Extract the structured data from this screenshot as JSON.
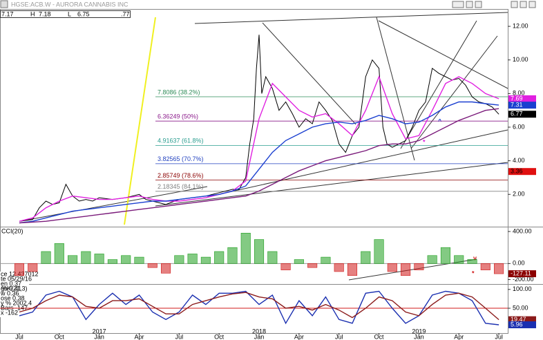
{
  "header": {
    "symbol": "HGSE:ACB.W - AURORA CANNABIS INC",
    "fields": [
      "7.17",
      "H",
      "7.18",
      "L",
      "6.75",
      ".77"
    ]
  },
  "data_window": [
    "ce 12.437012",
    "te 05/29/16",
    "en 0.37",
    "gh 0.41",
    "w 0.36",
    "ose 0.38",
    "y % 2002.4",
    "Bars -147",
    "x -162"
  ],
  "annotations": [
    "^",
    "*",
    "v",
    "*"
  ],
  "chart_data": [
    {
      "type": "line",
      "ylim": [
        0.16,
        12.95
      ],
      "yticks": [
        {
          "value": 2,
          "label": "2.00"
        },
        {
          "value": 4,
          "label": "4.00"
        },
        {
          "value": 6,
          "label": "6.00"
        },
        {
          "value": 8,
          "label": "8.00"
        },
        {
          "value": 10,
          "label": "10.00"
        },
        {
          "value": 12,
          "label": "12.00"
        }
      ],
      "x": [
        0,
        1,
        2,
        3,
        4,
        5,
        6,
        7,
        8,
        9,
        10,
        11,
        12,
        13,
        14,
        15,
        16,
        17,
        18,
        19,
        20,
        21,
        22,
        23,
        24,
        25,
        26,
        27,
        28,
        29,
        30,
        31,
        32,
        33,
        34,
        35,
        36
      ],
      "series": [
        {
          "color": "#000000",
          "x": [
            0,
            1,
            1.5,
            2,
            2.5,
            3,
            3.5,
            4,
            4.5,
            5,
            5.5,
            6,
            7,
            8,
            9,
            9.5,
            10,
            11,
            12,
            13,
            14,
            15,
            16,
            16.5,
            17,
            17.3,
            17.6,
            17.8,
            18,
            18.2,
            18.5,
            19,
            19.5,
            20,
            20.5,
            21,
            21.5,
            22,
            22.5,
            23,
            23.5,
            24,
            24.5,
            25,
            25.5,
            26,
            26.5,
            27,
            27.3,
            27.6,
            28,
            28.5,
            29,
            29.5,
            30,
            30.5,
            31,
            31.5,
            32,
            32.5,
            33,
            33.5,
            34,
            34.5,
            35,
            35.5,
            36
          ],
          "values": [
            0.4,
            0.5,
            1.2,
            1.6,
            1.4,
            1.5,
            2.6,
            1.9,
            1.6,
            1.7,
            1.6,
            1.8,
            1.7,
            1.8,
            2.0,
            1.7,
            1.6,
            1.4,
            1.7,
            1.8,
            1.9,
            2.1,
            2.3,
            2.3,
            3.0,
            5.0,
            6.5,
            9.5,
            11.5,
            8.0,
            9.0,
            8.3,
            7.0,
            7.5,
            6.8,
            6.0,
            6.5,
            6.2,
            7.5,
            7.0,
            6.4,
            5.0,
            4.5,
            5.5,
            6.0,
            9.0,
            10.0,
            9.5,
            6.0,
            5.0,
            4.8,
            5.0,
            5.2,
            6.0,
            7.0,
            7.5,
            9.5,
            9.2,
            9.0,
            8.8,
            8.9,
            8.5,
            7.8,
            7.5,
            7.4,
            7.2,
            6.77
          ]
        },
        {
          "color": "#e020e0",
          "values": [
            0.4,
            0.6,
            1.2,
            1.6,
            1.9,
            1.8,
            1.7,
            1.7,
            1.8,
            1.9,
            1.7,
            1.6,
            1.6,
            1.7,
            1.8,
            2.0,
            2.2,
            2.8,
            6.5,
            8.6,
            7.8,
            7.0,
            6.6,
            6.8,
            6.2,
            5.5,
            7.0,
            9.0,
            6.8,
            5.3,
            5.5,
            7.0,
            8.6,
            9.0,
            8.6,
            8.0,
            7.69
          ]
        },
        {
          "color": "#1a3fd0",
          "values": [
            0.3,
            0.4,
            0.6,
            0.8,
            1.0,
            1.1,
            1.2,
            1.3,
            1.4,
            1.5,
            1.6,
            1.6,
            1.7,
            1.8,
            1.9,
            2.0,
            2.2,
            2.5,
            3.5,
            4.5,
            5.2,
            5.6,
            6.0,
            6.2,
            6.3,
            6.2,
            6.4,
            6.7,
            6.5,
            6.2,
            6.3,
            6.7,
            7.2,
            7.5,
            7.5,
            7.4,
            7.31
          ]
        },
        {
          "color": "#7a1a7a",
          "values": [
            0.3,
            0.35,
            0.4,
            0.5,
            0.6,
            0.7,
            0.8,
            0.9,
            1.0,
            1.1,
            1.2,
            1.3,
            1.4,
            1.5,
            1.6,
            1.7,
            1.8,
            1.9,
            2.2,
            2.6,
            3.0,
            3.4,
            3.7,
            4.0,
            4.2,
            4.4,
            4.6,
            4.9,
            5.0,
            5.0,
            5.2,
            5.6,
            6.0,
            6.4,
            6.7,
            7.0,
            7.1
          ]
        }
      ],
      "levels": [
        {
          "value": 7.8086,
          "label": "7.8086 (38.2%)",
          "color": "#2e8b57"
        },
        {
          "value": 6.36249,
          "label": "6.36249 (50%)",
          "color": "#8b1a8b"
        },
        {
          "value": 4.91637,
          "label": "4.91637 (61.8%)",
          "color": "#2a9d8f"
        },
        {
          "value": 3.82565,
          "label": "3.82565 (70.7%)",
          "color": "#1f3fbf"
        },
        {
          "value": 2.85749,
          "label": "2.85749 (78.6%)",
          "color": "#8b0000"
        },
        {
          "value": 2.18345,
          "label": "2.18345 (84.1%)",
          "color": "#808080"
        }
      ],
      "tags": [
        {
          "value": 7.69,
          "label": "7.69",
          "color": "#e020e0"
        },
        {
          "value": 7.31,
          "label": "7.31",
          "color": "#1a3fd0"
        },
        {
          "value": 6.77,
          "label": "6.77",
          "color": "#000000"
        },
        {
          "value": 3.36,
          "label": "3.36",
          "color": "#e01010"
        }
      ]
    },
    {
      "type": "bar",
      "title": "CCI(20)",
      "ylim": [
        -247,
        443
      ],
      "yticks": [
        {
          "value": 400,
          "label": "400.00"
        },
        {
          "value": 0,
          "label": "0.00"
        },
        {
          "value": -200,
          "label": "-200.00"
        }
      ],
      "pos_color": "#1e9e1e",
      "neg_color": "#d01818",
      "x": [
        0,
        1,
        2,
        3,
        4,
        5,
        6,
        7,
        8,
        9,
        10,
        11,
        12,
        13,
        14,
        15,
        16,
        17,
        18,
        19,
        20,
        21,
        22,
        23,
        24,
        25,
        26,
        27,
        28,
        29,
        30,
        31,
        32,
        33,
        34,
        35,
        36
      ],
      "values": [
        -150,
        -100,
        150,
        250,
        100,
        150,
        120,
        50,
        100,
        80,
        -50,
        -120,
        100,
        120,
        80,
        150,
        200,
        380,
        300,
        150,
        -80,
        50,
        -50,
        80,
        -100,
        -150,
        150,
        300,
        -100,
        -150,
        -80,
        100,
        200,
        100,
        50,
        -80,
        -127.11
      ],
      "tags": [
        {
          "value": -127.11,
          "label": "-127.11",
          "color": "#8b0000"
        }
      ]
    },
    {
      "type": "line",
      "title": "%K(21,3)",
      "ylim": [
        -14.3,
        110.7
      ],
      "yticks": [
        {
          "value": 100,
          "label": "100.00"
        },
        {
          "value": 50,
          "label": "50.00"
        }
      ],
      "ref_level": 50,
      "xlim": [
        -1.45,
        36.67
      ],
      "xticks": [
        {
          "value": 0,
          "label": "Jul"
        },
        {
          "value": 3,
          "label": "Oct"
        },
        {
          "value": 6,
          "label": "Jan"
        },
        {
          "value": 9,
          "label": "Apr"
        },
        {
          "value": 12,
          "label": "Jul"
        },
        {
          "value": 15,
          "label": "Oct"
        },
        {
          "value": 18,
          "label": "Jan"
        },
        {
          "value": 21,
          "label": "Apr"
        },
        {
          "value": 24,
          "label": "Jul"
        },
        {
          "value": 27,
          "label": "Oct"
        },
        {
          "value": 30,
          "label": "Jan"
        },
        {
          "value": 33,
          "label": "Apr"
        },
        {
          "value": 36,
          "label": "Jul"
        }
      ],
      "year_labels": [
        {
          "value": 6,
          "label": "2017"
        },
        {
          "value": 18,
          "label": "2018"
        },
        {
          "value": 30,
          "label": "2019"
        }
      ],
      "x": [
        0,
        1,
        2,
        3,
        4,
        5,
        6,
        7,
        8,
        9,
        10,
        11,
        12,
        13,
        14,
        15,
        16,
        17,
        18,
        19,
        20,
        21,
        22,
        23,
        24,
        25,
        26,
        27,
        28,
        29,
        30,
        31,
        32,
        33,
        34,
        35,
        36
      ],
      "series": [
        {
          "color": "#1a2fb0",
          "values": [
            30,
            40,
            85,
            95,
            80,
            20,
            60,
            90,
            60,
            85,
            40,
            20,
            40,
            85,
            60,
            90,
            90,
            95,
            60,
            85,
            10,
            70,
            30,
            80,
            20,
            10,
            90,
            95,
            50,
            10,
            30,
            85,
            95,
            90,
            70,
            10,
            5.96
          ]
        },
        {
          "color": "#8b1a1a",
          "values": [
            40,
            50,
            70,
            85,
            80,
            55,
            50,
            70,
            70,
            75,
            55,
            35,
            35,
            60,
            70,
            80,
            88,
            92,
            80,
            75,
            50,
            55,
            45,
            60,
            45,
            25,
            50,
            80,
            70,
            40,
            30,
            60,
            85,
            90,
            80,
            50,
            19.47
          ]
        }
      ],
      "tags": [
        {
          "value": 19.47,
          "label": "19.47",
          "color": "#8b1a1a"
        },
        {
          "value": 5.96,
          "label": "5.96",
          "color": "#1a2fb0"
        }
      ]
    }
  ]
}
